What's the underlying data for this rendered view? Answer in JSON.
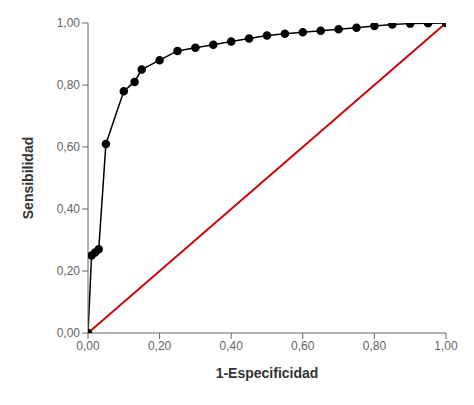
{
  "chart_data": {
    "type": "line",
    "xlabel": "1-Especificidad",
    "ylabel": "Sensibilidad",
    "xlim": [
      0.0,
      1.0
    ],
    "ylim": [
      0.0,
      1.0
    ],
    "xticks": [
      {
        "value": 0.0,
        "label": "0,00"
      },
      {
        "value": 0.2,
        "label": "0,20"
      },
      {
        "value": 0.4,
        "label": "0,40"
      },
      {
        "value": 0.6,
        "label": "0,60"
      },
      {
        "value": 0.8,
        "label": "0,80"
      },
      {
        "value": 1.0,
        "label": "1,00"
      }
    ],
    "yticks": [
      {
        "value": 0.0,
        "label": "0,00"
      },
      {
        "value": 0.2,
        "label": "0,20"
      },
      {
        "value": 0.4,
        "label": "0,40"
      },
      {
        "value": 0.6,
        "label": "0,60"
      },
      {
        "value": 0.8,
        "label": "0,80"
      },
      {
        "value": 1.0,
        "label": "1,00"
      }
    ],
    "grid": false,
    "series": [
      {
        "x": [
          0.0,
          1.0
        ],
        "values": [
          0.0,
          1.0
        ],
        "color": "#cc0000",
        "line_style": "solid"
      },
      {
        "x": [
          0.0,
          0.01,
          0.02,
          0.03,
          0.05,
          0.1,
          0.13,
          0.15,
          0.2,
          0.25,
          0.3,
          0.35,
          0.4,
          0.45,
          0.5,
          0.55,
          0.6,
          0.65,
          0.7,
          0.75,
          0.8,
          0.85,
          0.9,
          0.95,
          1.0
        ],
        "values": [
          0.0,
          0.25,
          0.26,
          0.27,
          0.61,
          0.78,
          0.81,
          0.85,
          0.88,
          0.91,
          0.92,
          0.93,
          0.94,
          0.95,
          0.96,
          0.965,
          0.97,
          0.975,
          0.98,
          0.985,
          0.99,
          0.995,
          0.998,
          0.999,
          1.0
        ],
        "color": "#000000",
        "marker": "circle",
        "line_style": "solid"
      }
    ]
  }
}
